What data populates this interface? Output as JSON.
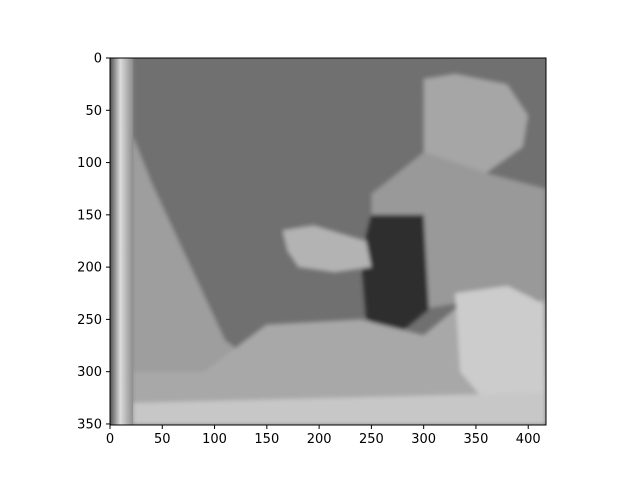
{
  "chart_data": {
    "type": "heatmap",
    "title": "",
    "xlabel": "",
    "ylabel": "",
    "colormap": "grayscale",
    "image_size": {
      "cols": 417,
      "rows": 351
    },
    "xlim": [
      0,
      417
    ],
    "ylim": [
      351,
      0
    ],
    "x_ticks": [
      0,
      50,
      100,
      150,
      200,
      250,
      300,
      350,
      400
    ],
    "y_ticks": [
      0,
      50,
      100,
      150,
      200,
      250,
      300,
      350
    ],
    "grid": false,
    "legend": "none",
    "regions": [
      {
        "name": "left-edge-band",
        "polygon": [
          [
            0,
            0
          ],
          [
            22,
            0
          ],
          [
            22,
            351
          ],
          [
            0,
            351
          ]
        ],
        "gray": 0.55
      },
      {
        "name": "background-wall",
        "polygon": [
          [
            0,
            0
          ],
          [
            330,
            0
          ],
          [
            300,
            20
          ],
          [
            250,
            130
          ],
          [
            175,
            165
          ],
          [
            150,
            250
          ],
          [
            130,
            280
          ],
          [
            110,
            270
          ],
          [
            40,
            120
          ],
          [
            22,
            75
          ],
          [
            22,
            0
          ]
        ],
        "gray": 0.44
      },
      {
        "name": "left-slope",
        "polygon": [
          [
            22,
            75
          ],
          [
            40,
            120
          ],
          [
            110,
            270
          ],
          [
            130,
            285
          ],
          [
            150,
            260
          ],
          [
            90,
            300
          ],
          [
            22,
            351
          ]
        ],
        "gray": 0.62
      },
      {
        "name": "upper-right-blob",
        "polygon": [
          [
            300,
            20
          ],
          [
            330,
            15
          ],
          [
            380,
            25
          ],
          [
            400,
            55
          ],
          [
            395,
            85
          ],
          [
            360,
            110
          ],
          [
            325,
            100
          ],
          [
            300,
            90
          ],
          [
            300,
            60
          ]
        ],
        "gray": 0.65
      },
      {
        "name": "right-structure",
        "polygon": [
          [
            250,
            130
          ],
          [
            300,
            90
          ],
          [
            360,
            110
          ],
          [
            417,
            125
          ],
          [
            417,
            230
          ],
          [
            360,
            230
          ],
          [
            300,
            240
          ],
          [
            250,
            200
          ]
        ],
        "gray": 0.6
      },
      {
        "name": "center-dark-object",
        "polygon": [
          [
            250,
            150
          ],
          [
            300,
            150
          ],
          [
            305,
            240
          ],
          [
            275,
            265
          ],
          [
            245,
            250
          ],
          [
            240,
            190
          ]
        ],
        "gray": 0.18
      },
      {
        "name": "left-arm",
        "polygon": [
          [
            165,
            165
          ],
          [
            195,
            160
          ],
          [
            245,
            175
          ],
          [
            250,
            200
          ],
          [
            215,
            205
          ],
          [
            180,
            200
          ],
          [
            170,
            185
          ]
        ],
        "gray": 0.7
      },
      {
        "name": "lower-floor",
        "polygon": [
          [
            22,
            300
          ],
          [
            90,
            300
          ],
          [
            150,
            255
          ],
          [
            240,
            250
          ],
          [
            300,
            265
          ],
          [
            330,
            240
          ],
          [
            417,
            230
          ],
          [
            417,
            351
          ],
          [
            22,
            351
          ]
        ],
        "gray": 0.66
      },
      {
        "name": "bright-right-patch",
        "polygon": [
          [
            330,
            225
          ],
          [
            380,
            218
          ],
          [
            415,
            235
          ],
          [
            417,
            320
          ],
          [
            360,
            330
          ],
          [
            335,
            300
          ]
        ],
        "gray": 0.8
      },
      {
        "name": "bright-bottom-strip",
        "polygon": [
          [
            22,
            330
          ],
          [
            417,
            320
          ],
          [
            417,
            351
          ],
          [
            22,
            351
          ]
        ],
        "gray": 0.78
      }
    ]
  }
}
